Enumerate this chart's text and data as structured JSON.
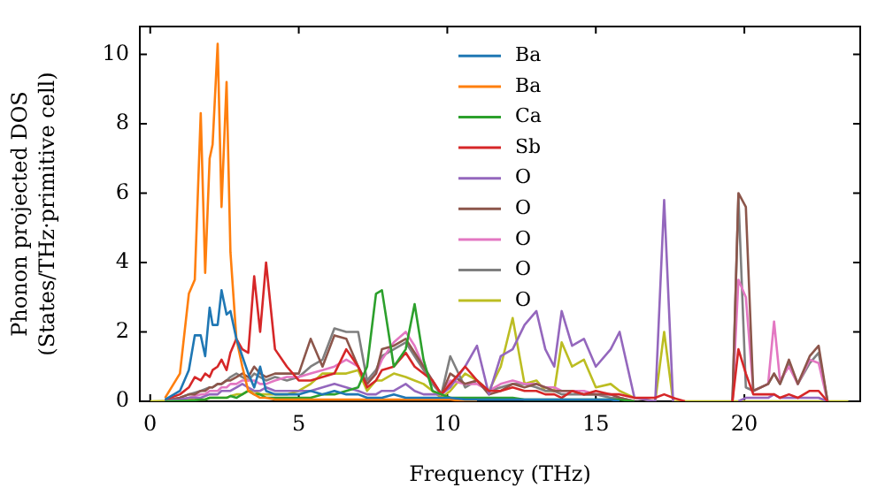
{
  "chart_data": {
    "type": "line",
    "xlabel": "Frequency (THz)",
    "ylabel": "Phonon projected DOS\n(States/THz·primitive cell)",
    "xlim": [
      -0.35,
      23.9
    ],
    "ylim": [
      0,
      10.8
    ],
    "xticks": [
      0,
      5,
      10,
      15,
      20
    ],
    "yticks": [
      0,
      2,
      4,
      6,
      8,
      10
    ],
    "legend": "top",
    "marker": "none",
    "line_style": "solid",
    "x": [
      0,
      0.5,
      1,
      1.3,
      1.5,
      1.7,
      1.85,
      2,
      2.1,
      2.27,
      2.4,
      2.57,
      2.7,
      2.9,
      3.1,
      3.3,
      3.5,
      3.7,
      3.9,
      4.2,
      4.6,
      5,
      5.4,
      5.8,
      6.2,
      6.6,
      7,
      7.3,
      7.6,
      7.8,
      8.2,
      8.6,
      8.9,
      9.2,
      9.5,
      9.8,
      10.1,
      10.6,
      11,
      11.4,
      11.8,
      12.2,
      12.6,
      13,
      13.3,
      13.6,
      13.85,
      14.2,
      14.6,
      15,
      15.5,
      15.8,
      16.3,
      17,
      17.3,
      17.6,
      18,
      19,
      19.6,
      19.8,
      20.05,
      20.3,
      20.8,
      21,
      21.2,
      21.5,
      21.8,
      22.2,
      22.5,
      22.8,
      23.5
    ],
    "series": [
      {
        "name": "Ba",
        "color": "#1f77b4",
        "values": [
          null,
          0.05,
          0.3,
          0.9,
          1.9,
          1.9,
          1.3,
          2.7,
          2.2,
          2.2,
          3.2,
          2.5,
          2.6,
          1.8,
          1.3,
          0.8,
          0.4,
          1.0,
          0.3,
          0.2,
          0.2,
          0.2,
          0.3,
          0.2,
          0.3,
          0.2,
          0.2,
          0.1,
          0.1,
          0.1,
          0.2,
          0.1,
          0.1,
          0.1,
          0.1,
          0.1,
          0.1,
          0.05,
          0.05,
          0.05,
          0.05,
          0.05,
          0.05,
          0.05,
          0.05,
          0.05,
          0.05,
          0.05,
          0.05,
          0.05,
          0.05,
          0,
          null,
          null,
          null,
          null,
          null,
          null,
          null,
          null,
          null,
          null,
          null,
          null,
          null,
          null,
          null,
          null,
          null,
          null,
          null
        ]
      },
      {
        "name": "Ba",
        "color": "#ff7f0e",
        "values": [
          null,
          0.1,
          0.8,
          3.1,
          3.5,
          8.3,
          3.7,
          7.0,
          7.4,
          10.3,
          5.6,
          9.2,
          4.3,
          1.8,
          1.0,
          0.3,
          0.2,
          0.1,
          0.1,
          0.05,
          0.05,
          0.05,
          0.05,
          0.05,
          0.05,
          0.05,
          0.05,
          0.05,
          0.05,
          0.05,
          0.05,
          0.05,
          0.05,
          0.05,
          0.05,
          0.05,
          0.05,
          0,
          0,
          null,
          null,
          null,
          null,
          null,
          null,
          null,
          null,
          null,
          null,
          null,
          null,
          null,
          null,
          null,
          null,
          null,
          null,
          null,
          null,
          null,
          null,
          null,
          null,
          null,
          null,
          null,
          null,
          null,
          null,
          null,
          null
        ]
      },
      {
        "name": "Ca",
        "color": "#2ca02c",
        "values": [
          null,
          0,
          0.01,
          0.02,
          0.03,
          0.05,
          0.05,
          0.1,
          0.1,
          0.1,
          0.1,
          0.1,
          0.15,
          0.1,
          0.2,
          0.3,
          0.2,
          0.2,
          0.1,
          0.1,
          0.1,
          0.1,
          0.1,
          0.2,
          0.2,
          0.3,
          0.4,
          1.0,
          3.1,
          3.2,
          1.0,
          1.5,
          2.8,
          1.2,
          0.3,
          0.2,
          0.1,
          0.1,
          0.1,
          0.1,
          0.1,
          0.1,
          0.05,
          0.05,
          0.05,
          0.05,
          0.05,
          0.05,
          0.05,
          0.05,
          0.05,
          0.05,
          0,
          null,
          null,
          null,
          null,
          null,
          null,
          null,
          null,
          null,
          null,
          null,
          null,
          null,
          null,
          null,
          null,
          null,
          null
        ]
      },
      {
        "name": "Sb",
        "color": "#d62728",
        "values": [
          null,
          0.05,
          0.2,
          0.4,
          0.7,
          0.6,
          0.8,
          0.7,
          0.9,
          1.0,
          1.2,
          0.9,
          1.4,
          1.8,
          1.5,
          1.4,
          3.6,
          2.0,
          4.0,
          1.5,
          1.0,
          0.6,
          0.6,
          0.7,
          0.8,
          1.5,
          1.0,
          0.4,
          0.6,
          0.9,
          1.0,
          1.4,
          1.0,
          0.8,
          0.6,
          0.2,
          0.5,
          1.0,
          0.6,
          0.3,
          0.3,
          0.4,
          0.3,
          0.3,
          0.2,
          0.2,
          0.1,
          0.3,
          0.2,
          0.3,
          0.2,
          0.2,
          0.1,
          0.1,
          0.2,
          0.1,
          0,
          null,
          0,
          1.5,
          0.8,
          0.2,
          0.2,
          0.2,
          0.1,
          0.2,
          0.1,
          0.3,
          0.3,
          0,
          null
        ]
      },
      {
        "name": "O",
        "color": "#9467bd",
        "values": [
          null,
          0.02,
          0.05,
          0.1,
          0.1,
          0.1,
          0.15,
          0.2,
          0.2,
          0.2,
          0.3,
          0.3,
          0.3,
          0.4,
          0.5,
          0.4,
          0.3,
          0.3,
          0.4,
          0.3,
          0.3,
          0.3,
          0.3,
          0.4,
          0.5,
          0.4,
          0.3,
          0.2,
          0.2,
          0.3,
          0.3,
          0.5,
          0.3,
          0.2,
          0.2,
          0.2,
          0.4,
          1.0,
          1.6,
          0.2,
          1.3,
          1.5,
          2.2,
          2.6,
          1.5,
          1.0,
          2.6,
          1.6,
          1.8,
          1.0,
          1.5,
          2.0,
          0.1,
          0,
          5.8,
          0,
          null,
          null,
          null,
          0,
          0.1,
          0.1,
          0.1,
          0.2,
          0.1,
          0.1,
          0.1,
          0.1,
          0.1,
          0,
          null
        ]
      },
      {
        "name": "O",
        "color": "#8c564b",
        "values": [
          null,
          0.02,
          0.1,
          0.2,
          0.2,
          0.3,
          0.3,
          0.4,
          0.4,
          0.5,
          0.5,
          0.6,
          0.6,
          0.7,
          0.8,
          0.7,
          1.0,
          0.8,
          0.7,
          0.8,
          0.8,
          0.8,
          1.8,
          1.0,
          1.9,
          1.8,
          1.0,
          0.5,
          0.8,
          1.5,
          1.6,
          1.8,
          1.4,
          1.0,
          0.6,
          0.2,
          0.8,
          0.5,
          0.6,
          0.2,
          0.3,
          0.5,
          0.4,
          0.5,
          0.4,
          0.3,
          0.3,
          0.3,
          0.2,
          0.2,
          0.2,
          0.1,
          0,
          null,
          null,
          null,
          null,
          null,
          0,
          6.0,
          5.6,
          0.3,
          0.5,
          0.8,
          0.5,
          1.2,
          0.5,
          1.3,
          1.6,
          0,
          null
        ]
      },
      {
        "name": "O",
        "color": "#e377c2",
        "values": [
          null,
          0.02,
          0.05,
          0.1,
          0.15,
          0.2,
          0.2,
          0.3,
          0.3,
          0.3,
          0.4,
          0.4,
          0.5,
          0.5,
          0.6,
          0.6,
          0.6,
          0.5,
          0.5,
          0.6,
          0.7,
          0.7,
          0.8,
          0.9,
          1.0,
          1.2,
          1.0,
          0.5,
          0.8,
          1.2,
          1.7,
          2.0,
          1.6,
          1.0,
          0.6,
          0.2,
          0.6,
          0.5,
          0.5,
          0.3,
          0.5,
          0.6,
          0.5,
          0.5,
          0.4,
          0.4,
          0.3,
          0.3,
          0.3,
          0.2,
          0.2,
          0.1,
          0,
          null,
          null,
          null,
          null,
          null,
          0,
          3.5,
          3.0,
          0.3,
          0.5,
          2.3,
          0.6,
          1.0,
          0.5,
          1.2,
          1.1,
          0,
          null
        ]
      },
      {
        "name": "O",
        "color": "#7f7f7f",
        "values": [
          null,
          0.02,
          0.1,
          0.2,
          0.25,
          0.3,
          0.35,
          0.4,
          0.4,
          0.5,
          0.5,
          0.6,
          0.7,
          0.8,
          0.7,
          0.6,
          0.8,
          0.7,
          0.6,
          0.7,
          0.6,
          0.7,
          1.0,
          1.2,
          2.1,
          2.0,
          2.0,
          0.6,
          0.9,
          1.3,
          1.5,
          1.7,
          1.3,
          0.9,
          0.5,
          0.2,
          1.3,
          0.4,
          0.6,
          0.3,
          0.4,
          0.5,
          0.5,
          0.4,
          0.3,
          0.3,
          0.2,
          0.2,
          0.2,
          0.2,
          0.1,
          0.1,
          0,
          null,
          null,
          null,
          null,
          null,
          0,
          5.9,
          0.4,
          0.3,
          0.5,
          0.8,
          0.5,
          1.1,
          0.5,
          1.1,
          1.4,
          0,
          null
        ]
      },
      {
        "name": "O",
        "color": "#bcbd22",
        "values": [
          0,
          0.01,
          0.02,
          0.05,
          0.05,
          0.05,
          0.05,
          0.1,
          0.1,
          0.1,
          0.1,
          0.1,
          0.15,
          0.2,
          0.2,
          0.3,
          0.3,
          0.2,
          0.2,
          0.2,
          0.2,
          0.3,
          0.5,
          0.8,
          0.8,
          0.8,
          0.9,
          0.3,
          0.6,
          0.6,
          0.8,
          0.7,
          0.6,
          0.5,
          0.3,
          0.1,
          0.3,
          0.8,
          0.6,
          0.3,
          1.0,
          2.4,
          0.5,
          0.6,
          0.3,
          0.3,
          1.7,
          1.0,
          1.2,
          0.4,
          0.5,
          0.3,
          0.1,
          0,
          2.0,
          0,
          0,
          0,
          0,
          0,
          0,
          0,
          0,
          0,
          0,
          0,
          0,
          0,
          0,
          0,
          0
        ]
      }
    ]
  }
}
